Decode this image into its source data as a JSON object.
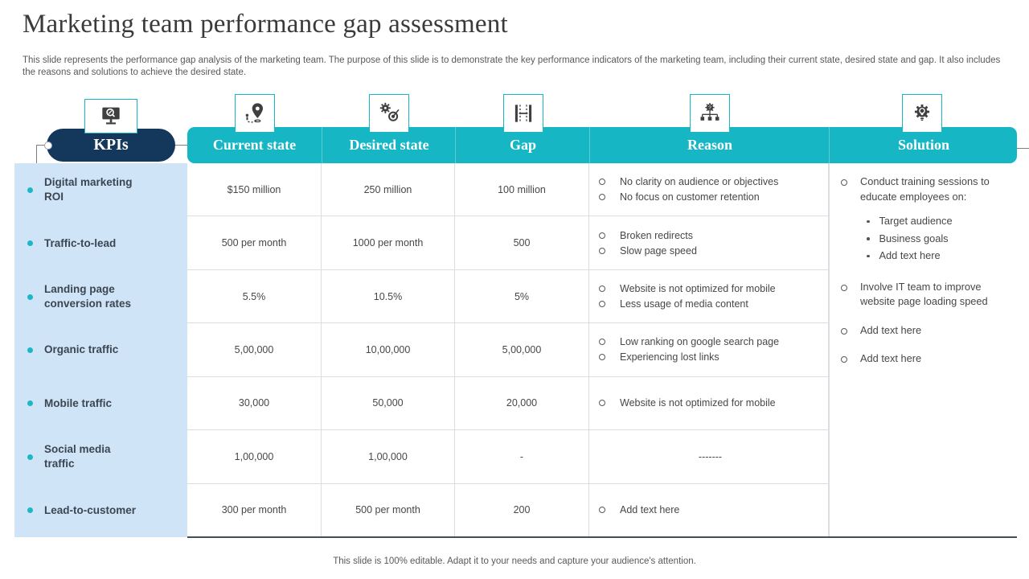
{
  "title": "Marketing team performance gap assessment",
  "subtitle": "This slide represents the performance gap analysis of the marketing team. The purpose of this slide is to demonstrate the key performance indicators of the marketing team, including their current state, desired state and gap. It also includes the reasons and solutions to achieve the desired state.",
  "footer": "This slide is 100% editable. Adapt it to your needs and capture your audience's attention.",
  "colors": {
    "teal": "#17b6c4",
    "navy": "#14375c",
    "kpi_panel_blue": "#cfe4f6",
    "bullet_teal": "#1ab8c6"
  },
  "header": {
    "kpi_label": "KPIs",
    "kpi_icon": "monitor-search-icon",
    "columns": [
      {
        "label": "Current state",
        "icon": "location-pin-icon"
      },
      {
        "label": "Desired state",
        "icon": "gears-target-icon"
      },
      {
        "label": "Gap",
        "icon": "gap-width-icon"
      },
      {
        "label": "Reason",
        "icon": "hierarchy-question-icon"
      },
      {
        "label": "Solution",
        "icon": "bulb-gear-icon"
      }
    ]
  },
  "rows": [
    {
      "kpi": "Digital marketing ROI",
      "current": "$150 million",
      "desired": "250 million",
      "gap": "100 million",
      "reasons": [
        "No clarity on audience or objectives",
        "No focus on customer retention"
      ]
    },
    {
      "kpi": "Traffic-to-lead",
      "current": "500 per month",
      "desired": "1000 per month",
      "gap": "500",
      "reasons": [
        "Broken redirects",
        "Slow page speed"
      ]
    },
    {
      "kpi": "Landing page conversion rates",
      "current": "5.5%",
      "desired": "10.5%",
      "gap": "5%",
      "reasons": [
        "Website is not optimized for mobile",
        "Less usage of media content"
      ]
    },
    {
      "kpi": "Organic traffic",
      "current": "5,00,000",
      "desired": "10,00,000",
      "gap": "5,00,000",
      "reasons": [
        "Low ranking on google search page",
        "Experiencing lost links"
      ]
    },
    {
      "kpi": "Mobile traffic",
      "current": "30,000",
      "desired": "50,000",
      "gap": "20,000",
      "reasons": [
        "Website is not optimized for mobile"
      ]
    },
    {
      "kpi": "Social media traffic",
      "current": "1,00,000",
      "desired": "1,00,000",
      "gap": "-",
      "reasons": [],
      "reason_placeholder": "-------"
    },
    {
      "kpi": "Lead-to-customer",
      "current": "300 per month",
      "desired": "500 per month",
      "gap": "200",
      "reasons": [
        "Add text here"
      ]
    }
  ],
  "solution": {
    "items": [
      {
        "text": "Conduct training sessions to educate employees on:",
        "sub": [
          "Target audience",
          "Business goals",
          "Add text here"
        ]
      },
      {
        "text": "Involve IT team to improve website page loading speed",
        "sub": []
      },
      {
        "text": "Add text here",
        "sub": []
      },
      {
        "text": "Add text here",
        "sub": []
      }
    ]
  }
}
